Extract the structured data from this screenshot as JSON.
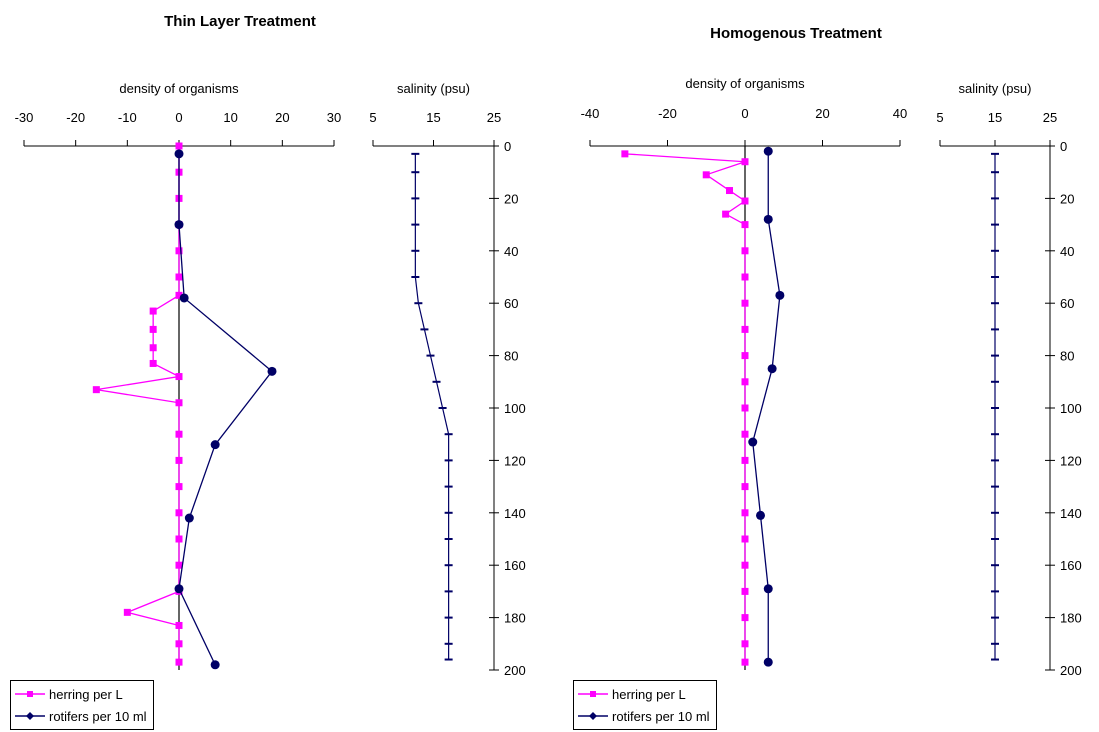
{
  "panels": [
    {
      "title": "Thin Layer Treatment"
    },
    {
      "title": "Homogenous Treatment"
    }
  ],
  "legend": {
    "herring": "herring per L",
    "rotifers": "rotifers per 10 ml"
  },
  "colors": {
    "herring": "#ff00ff",
    "rotifers": "#000066",
    "salinity": "#000066"
  },
  "chart_data": [
    {
      "type": "line",
      "title": "Thin Layer Treatment",
      "xlabel": "density of organisms",
      "xlim": [
        -30,
        30
      ],
      "xticks": [
        -30,
        -20,
        -10,
        0,
        10,
        20,
        30
      ],
      "ylim": [
        0,
        200
      ],
      "y_reversed": true,
      "series": [
        {
          "name": "herring per L",
          "points": [
            [
              0,
              0
            ],
            [
              0,
              10
            ],
            [
              0,
              20
            ],
            [
              0,
              30
            ],
            [
              0,
              40
            ],
            [
              0,
              50
            ],
            [
              0,
              57
            ],
            [
              -5,
              63
            ],
            [
              -5,
              70
            ],
            [
              -5,
              77
            ],
            [
              -5,
              83
            ],
            [
              0,
              88
            ],
            [
              -16,
              93
            ],
            [
              0,
              98
            ],
            [
              0,
              110
            ],
            [
              0,
              120
            ],
            [
              0,
              130
            ],
            [
              0,
              140
            ],
            [
              0,
              150
            ],
            [
              0,
              160
            ],
            [
              0,
              170
            ],
            [
              -10,
              178
            ],
            [
              0,
              183
            ],
            [
              0,
              190
            ],
            [
              0,
              197
            ]
          ]
        },
        {
          "name": "rotifers per 10 ml",
          "points": [
            [
              0,
              3
            ],
            [
              0,
              30
            ],
            [
              1,
              58
            ],
            [
              18,
              86
            ],
            [
              7,
              114
            ],
            [
              2,
              142
            ],
            [
              0,
              169
            ],
            [
              7,
              198
            ]
          ]
        }
      ]
    },
    {
      "type": "line",
      "xlabel": "salinity (psu)",
      "xlim": [
        5,
        25
      ],
      "xticks": [
        5,
        15,
        25
      ],
      "ylim": [
        0,
        200
      ],
      "yticks": [
        0,
        20,
        40,
        60,
        80,
        100,
        120,
        140,
        160,
        180,
        200
      ],
      "y_reversed": true,
      "series": [
        {
          "points": [
            [
              12,
              3
            ],
            [
              12,
              10
            ],
            [
              12,
              20
            ],
            [
              12,
              30
            ],
            [
              12,
              40
            ],
            [
              12,
              50
            ],
            [
              12.5,
              60
            ],
            [
              13.5,
              70
            ],
            [
              14.5,
              80
            ],
            [
              15.5,
              90
            ],
            [
              16.5,
              100
            ],
            [
              17.5,
              110
            ],
            [
              17.5,
              120
            ],
            [
              17.5,
              130
            ],
            [
              17.5,
              140
            ],
            [
              17.5,
              150
            ],
            [
              17.5,
              160
            ],
            [
              17.5,
              170
            ],
            [
              17.5,
              180
            ],
            [
              17.5,
              190
            ],
            [
              17.5,
              196
            ]
          ]
        }
      ]
    },
    {
      "type": "line",
      "title": "Homogenous Treatment",
      "xlabel": "density of organisms",
      "xlim": [
        -40,
        40
      ],
      "xticks": [
        -40,
        -20,
        0,
        20,
        40
      ],
      "ylim": [
        0,
        200
      ],
      "y_reversed": true,
      "series": [
        {
          "name": "herring per L",
          "points": [
            [
              -31,
              3
            ],
            [
              0,
              6
            ],
            [
              -10,
              11
            ],
            [
              -4,
              17
            ],
            [
              0,
              21
            ],
            [
              -5,
              26
            ],
            [
              0,
              30
            ],
            [
              0,
              40
            ],
            [
              0,
              50
            ],
            [
              0,
              60
            ],
            [
              0,
              70
            ],
            [
              0,
              80
            ],
            [
              0,
              90
            ],
            [
              0,
              100
            ],
            [
              0,
              110
            ],
            [
              0,
              120
            ],
            [
              0,
              130
            ],
            [
              0,
              140
            ],
            [
              0,
              150
            ],
            [
              0,
              160
            ],
            [
              0,
              170
            ],
            [
              0,
              180
            ],
            [
              0,
              190
            ],
            [
              0,
              197
            ]
          ]
        },
        {
          "name": "rotifers per 10 ml",
          "points": [
            [
              6,
              2
            ],
            [
              6,
              28
            ],
            [
              9,
              57
            ],
            [
              7,
              85
            ],
            [
              2,
              113
            ],
            [
              4,
              141
            ],
            [
              6,
              169
            ],
            [
              6,
              197
            ]
          ]
        }
      ]
    },
    {
      "type": "line",
      "xlabel": "salinity (psu)",
      "xlim": [
        5,
        25
      ],
      "xticks": [
        5,
        15,
        25
      ],
      "ylim": [
        0,
        200
      ],
      "yticks": [
        0,
        20,
        40,
        60,
        80,
        100,
        120,
        140,
        160,
        180,
        200
      ],
      "y_reversed": true,
      "series": [
        {
          "points": [
            [
              15,
              3
            ],
            [
              15,
              10
            ],
            [
              15,
              20
            ],
            [
              15,
              30
            ],
            [
              15,
              40
            ],
            [
              15,
              50
            ],
            [
              15,
              60
            ],
            [
              15,
              70
            ],
            [
              15,
              80
            ],
            [
              15,
              90
            ],
            [
              15,
              100
            ],
            [
              15,
              110
            ],
            [
              15,
              120
            ],
            [
              15,
              130
            ],
            [
              15,
              140
            ],
            [
              15,
              150
            ],
            [
              15,
              160
            ],
            [
              15,
              170
            ],
            [
              15,
              180
            ],
            [
              15,
              190
            ],
            [
              15,
              196
            ]
          ]
        }
      ]
    }
  ]
}
